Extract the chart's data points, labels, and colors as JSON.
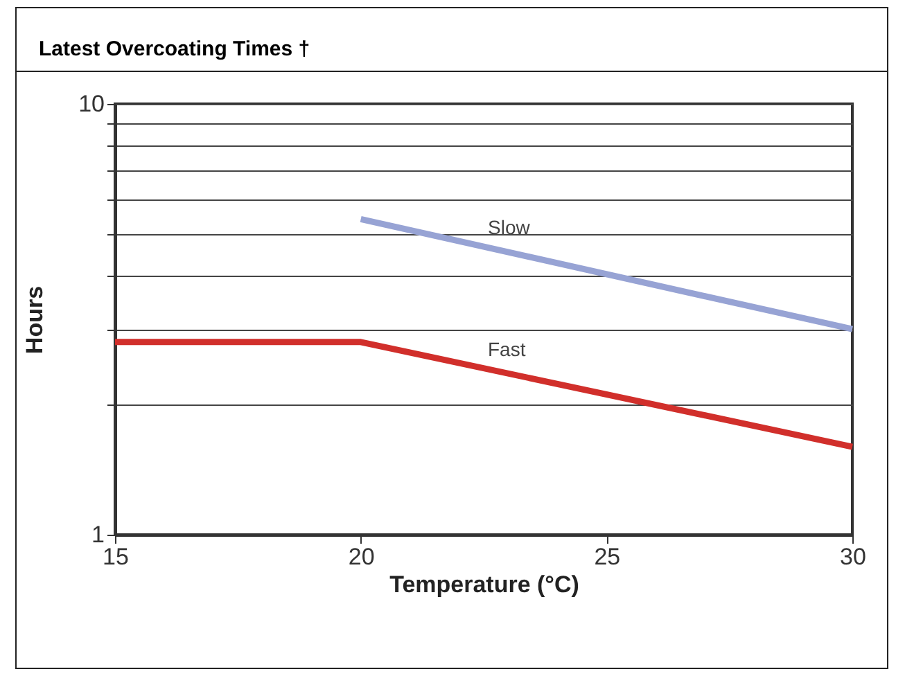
{
  "chart_data": {
    "type": "line",
    "title": "Latest Overcoating Times †",
    "xlabel": "Temperature (°C)",
    "ylabel": "Hours",
    "series": [
      {
        "name": "Slow",
        "color": "#97a3d4",
        "x": [
          20,
          30
        ],
        "values": [
          5.4,
          3.0
        ]
      },
      {
        "name": "Fast",
        "color": "#d12f2b",
        "x": [
          15,
          20,
          30
        ],
        "values": [
          2.8,
          2.8,
          1.6
        ]
      }
    ],
    "xlim": [
      15,
      30
    ],
    "xticks": [
      15,
      20,
      25,
      30
    ],
    "ylim": [
      1,
      10
    ],
    "yticks": [
      1,
      {
        "value": 2,
        "label": null
      },
      {
        "value": 3,
        "label": null
      },
      {
        "value": 4,
        "label": null
      },
      {
        "value": 5,
        "label": null
      },
      {
        "value": 6,
        "label": null
      },
      {
        "value": 7,
        "label": null
      },
      {
        "value": 8,
        "label": null
      },
      {
        "value": 9,
        "label": null
      },
      10
    ],
    "log": true,
    "grid": "y",
    "marker": "none",
    "line_style": "solid"
  }
}
